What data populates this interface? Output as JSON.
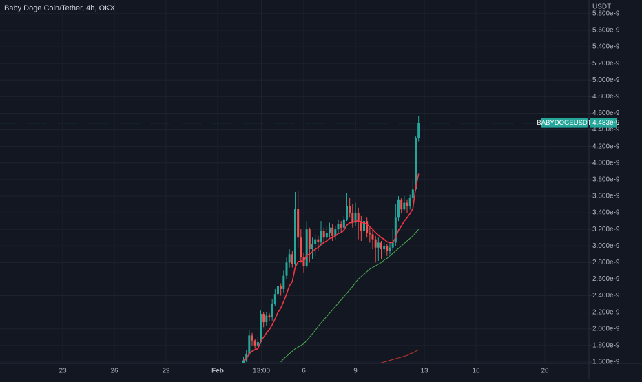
{
  "chart_data": {
    "type": "candlestick",
    "title": "Baby Doge Coin/Tether, 4h, OKX",
    "currency": "USDT",
    "symbol_label": "BABYDOGEUSDT",
    "last_price": {
      "value": 4.483e-09,
      "label": "4.483e-9"
    },
    "up_color": "#26a69a",
    "down_color": "#ef5350",
    "grid": true,
    "xlim": [
      19.36,
      53.56
    ],
    "xticks": [
      23,
      26,
      29,
      {
        "value": 32,
        "label": "Feb"
      },
      {
        "value": 34.541667,
        "label": "13:00"
      },
      {
        "value": 37,
        "label": "6"
      },
      {
        "value": 40,
        "label": "9"
      },
      {
        "value": 44,
        "label": "13"
      },
      {
        "value": 47,
        "label": "16"
      },
      {
        "value": 51,
        "label": "20"
      }
    ],
    "ylim": [
      1.583e-09,
      5.965e-09
    ],
    "yticks": [
      {
        "value": 1.6e-09,
        "label": "1.600e-9"
      },
      {
        "value": 1.8e-09,
        "label": "1.800e-9"
      },
      {
        "value": 2e-09,
        "label": "2.000e-9"
      },
      {
        "value": 2.2e-09,
        "label": "2.200e-9"
      },
      {
        "value": 2.4e-09,
        "label": "2.400e-9"
      },
      {
        "value": 2.6e-09,
        "label": "2.600e-9"
      },
      {
        "value": 2.8e-09,
        "label": "2.800e-9"
      },
      {
        "value": 3e-09,
        "label": "3.000e-9"
      },
      {
        "value": 3.2e-09,
        "label": "3.200e-9"
      },
      {
        "value": 3.4e-09,
        "label": "3.400e-9"
      },
      {
        "value": 3.6e-09,
        "label": "3.600e-9"
      },
      {
        "value": 3.8e-09,
        "label": "3.800e-9"
      },
      {
        "value": 4e-09,
        "label": "4.000e-9"
      },
      {
        "value": 4.2e-09,
        "label": "4.200e-9"
      },
      {
        "value": 4.4e-09,
        "label": "4.400e-9"
      },
      {
        "value": 4.6e-09,
        "label": "4.600e-9"
      },
      {
        "value": 4.8e-09,
        "label": "4.800e-9"
      },
      {
        "value": 5e-09,
        "label": "5.000e-9"
      },
      {
        "value": 5.2e-09,
        "label": "5.200e-9"
      },
      {
        "value": 5.4e-09,
        "label": "5.400e-9"
      },
      {
        "value": 5.6e-09,
        "label": "5.600e-9"
      },
      {
        "value": 5.8e-09,
        "label": "5.800e-9"
      }
    ],
    "candles": {
      "x": [
        33.5,
        33.667,
        33.833,
        34,
        34.167,
        34.333,
        34.5,
        34.667,
        34.833,
        35,
        35.167,
        35.333,
        35.5,
        35.667,
        35.833,
        36,
        36.167,
        36.333,
        36.5,
        36.667,
        36.833,
        37,
        37.167,
        37.333,
        37.5,
        37.667,
        37.833,
        38,
        38.167,
        38.333,
        38.5,
        38.667,
        38.833,
        39,
        39.167,
        39.333,
        39.5,
        39.667,
        39.833,
        40,
        40.167,
        40.333,
        40.5,
        40.667,
        40.833,
        41,
        41.167,
        41.333,
        41.5,
        41.667,
        41.833,
        42,
        42.167,
        42.333,
        42.5,
        42.667,
        42.833,
        43,
        43.167,
        43.333,
        43.5,
        43.667
      ],
      "open": [
        1.58e-09,
        1.62e-09,
        1.7e-09,
        1.92e-09,
        1.86e-09,
        1.8e-09,
        1.84e-09,
        2.18e-09,
        2.08e-09,
        2.16e-09,
        2.14e-09,
        2.3e-09,
        2.42e-09,
        2.52e-09,
        2.48e-09,
        2.64e-09,
        2.8e-09,
        2.9e-09,
        2.78e-09,
        3.45e-09,
        3.1e-09,
        2.86e-09,
        2.76e-09,
        3.2e-09,
        2.96e-09,
        3.02e-09,
        3.08e-09,
        3.05e-09,
        3.18e-09,
        3.1e-09,
        3.16e-09,
        3.22e-09,
        3.12e-09,
        3.2e-09,
        3.26e-09,
        3.22e-09,
        3.32e-09,
        3.48e-09,
        3.4e-09,
        3.28e-09,
        3.4e-09,
        3.3e-09,
        3.18e-09,
        3.3e-09,
        3.16e-09,
        3.14e-09,
        3.08e-09,
        2.98e-09,
        3.04e-09,
        2.96e-09,
        3e-09,
        2.94e-09,
        2.98e-09,
        3.04e-09,
        3.34e-09,
        3.56e-09,
        3.44e-09,
        3.52e-09,
        3.48e-09,
        3.58e-09,
        3.68e-09,
        4.3e-09
      ],
      "high": [
        1.66e-09,
        1.74e-09,
        1.98e-09,
        1.95e-09,
        1.88e-09,
        1.9e-09,
        2.22e-09,
        2.2e-09,
        2.2e-09,
        2.19e-09,
        2.36e-09,
        2.48e-09,
        2.58e-09,
        2.55e-09,
        2.7e-09,
        2.86e-09,
        2.96e-09,
        2.94e-09,
        3.65e-09,
        3.66e-09,
        3.2e-09,
        2.92e-09,
        3.3e-09,
        3.22e-09,
        3.1e-09,
        3.14e-09,
        3.12e-09,
        3.3e-09,
        3.22e-09,
        3.24e-09,
        3.28e-09,
        3.26e-09,
        3.24e-09,
        3.32e-09,
        3.3e-09,
        3.36e-09,
        3.64e-09,
        3.58e-09,
        3.5e-09,
        3.52e-09,
        3.46e-09,
        3.36e-09,
        3.38e-09,
        3.34e-09,
        3.22e-09,
        3.2e-09,
        3.12e-09,
        3.1e-09,
        3.06e-09,
        3.04e-09,
        3.02e-09,
        3.04e-09,
        3.2e-09,
        3.5e-09,
        3.6e-09,
        3.58e-09,
        3.6e-09,
        3.56e-09,
        3.62e-09,
        3.8e-09,
        4.32e-09,
        4.57e-09
      ],
      "low": [
        1.57e-09,
        1.6e-09,
        1.68e-09,
        1.8e-09,
        1.76e-09,
        1.78e-09,
        1.82e-09,
        2.02e-09,
        2.04e-09,
        2.09e-09,
        2.1e-09,
        2.28e-09,
        2.38e-09,
        2.4e-09,
        2.44e-09,
        2.6e-09,
        2.74e-09,
        2.74e-09,
        2.76e-09,
        2.98e-09,
        2.8e-09,
        2.68e-09,
        2.74e-09,
        2.8e-09,
        2.84e-09,
        2.88e-09,
        2.94e-09,
        3e-09,
        3.04e-09,
        3.06e-09,
        3.1e-09,
        3.06e-09,
        3.08e-09,
        3.16e-09,
        3.16e-09,
        3.18e-09,
        3.3e-09,
        3.34e-09,
        3.22e-09,
        3.24e-09,
        3.08e-09,
        3.06e-09,
        3.02e-09,
        3.1e-09,
        3.04e-09,
        2.96e-09,
        2.8e-09,
        2.82e-09,
        2.84e-09,
        2.92e-09,
        2.88e-09,
        2.9e-09,
        2.94e-09,
        3e-09,
        3.3e-09,
        3.4e-09,
        3.42e-09,
        3.4e-09,
        3.44e-09,
        3.54e-09,
        3.66e-09,
        4.26e-09
      ],
      "close": [
        1.62e-09,
        1.7e-09,
        1.92e-09,
        1.86e-09,
        1.8e-09,
        1.84e-09,
        2.18e-09,
        2.08e-09,
        2.16e-09,
        2.14e-09,
        2.3e-09,
        2.42e-09,
        2.52e-09,
        2.48e-09,
        2.64e-09,
        2.8e-09,
        2.9e-09,
        2.78e-09,
        3.45e-09,
        3.1e-09,
        2.86e-09,
        2.76e-09,
        3.2e-09,
        2.96e-09,
        3.02e-09,
        3.08e-09,
        3.05e-09,
        3.18e-09,
        3.1e-09,
        3.16e-09,
        3.22e-09,
        3.12e-09,
        3.2e-09,
        3.26e-09,
        3.22e-09,
        3.32e-09,
        3.48e-09,
        3.4e-09,
        3.28e-09,
        3.4e-09,
        3.3e-09,
        3.18e-09,
        3.3e-09,
        3.16e-09,
        3.14e-09,
        3.08e-09,
        2.98e-09,
        3.04e-09,
        2.96e-09,
        3e-09,
        2.94e-09,
        2.98e-09,
        3.04e-09,
        3.34e-09,
        3.56e-09,
        3.44e-09,
        3.52e-09,
        3.48e-09,
        3.58e-09,
        3.68e-09,
        4.3e-09,
        4.483e-09
      ]
    },
    "series": [
      {
        "color": "#f23645",
        "values": [
          1.62e-09,
          1.64e-09,
          1.7e-09,
          1.73e-09,
          1.75e-09,
          1.76e-09,
          1.85e-09,
          1.9e-09,
          1.95e-09,
          1.99e-09,
          2.05e-09,
          2.12e-09,
          2.2e-09,
          2.25e-09,
          2.33e-09,
          2.42e-09,
          2.52e-09,
          2.57e-09,
          2.74e-09,
          2.81e-09,
          2.82e-09,
          2.81e-09,
          2.89e-09,
          2.9e-09,
          2.93e-09,
          2.96e-09,
          2.98e-09,
          3.02e-09,
          3.04e-09,
          3.06e-09,
          3.09e-09,
          3.1e-09,
          3.12e-09,
          3.15e-09,
          3.16e-09,
          3.19e-09,
          3.25e-09,
          3.28e-09,
          3.28e-09,
          3.3e-09,
          3.3e-09,
          3.28e-09,
          3.28e-09,
          3.26e-09,
          3.23e-09,
          3.2e-09,
          3.16e-09,
          3.13e-09,
          3.1e-09,
          3.08e-09,
          3.05e-09,
          3.04e-09,
          3.04e-09,
          3.1e-09,
          3.19e-09,
          3.24e-09,
          3.3e-09,
          3.34e-09,
          3.39e-09,
          3.45e-09,
          3.7e-09,
          3.87e-09
        ]
      },
      {
        "color": "#4caf50",
        "values": [
          null,
          null,
          null,
          null,
          null,
          null,
          null,
          null,
          null,
          null,
          null,
          null,
          null,
          1.6e-09,
          1.64e-09,
          1.67e-09,
          1.7e-09,
          1.73e-09,
          1.76e-09,
          1.78e-09,
          1.8e-09,
          1.82e-09,
          1.86e-09,
          1.9e-09,
          1.94e-09,
          1.98e-09,
          2.03e-09,
          2.07e-09,
          2.11e-09,
          2.15e-09,
          2.19e-09,
          2.23e-09,
          2.27e-09,
          2.31e-09,
          2.35e-09,
          2.39e-09,
          2.43e-09,
          2.47e-09,
          2.51e-09,
          2.56e-09,
          2.6e-09,
          2.63e-09,
          2.66e-09,
          2.69e-09,
          2.72e-09,
          2.74e-09,
          2.76e-09,
          2.78e-09,
          2.8e-09,
          2.83e-09,
          2.85e-09,
          2.88e-09,
          2.91e-09,
          2.94e-09,
          2.97e-09,
          3e-09,
          3.03e-09,
          3.06e-09,
          3.09e-09,
          3.12e-09,
          3.16e-09,
          3.2e-09
        ]
      },
      {
        "color": "#c0392b",
        "values": [
          null,
          null,
          null,
          null,
          null,
          null,
          null,
          null,
          null,
          null,
          null,
          null,
          null,
          null,
          null,
          null,
          null,
          null,
          null,
          null,
          null,
          null,
          null,
          null,
          null,
          null,
          null,
          null,
          null,
          null,
          null,
          null,
          null,
          null,
          null,
          null,
          null,
          null,
          null,
          null,
          null,
          null,
          null,
          null,
          null,
          null,
          null,
          null,
          1.59e-09,
          1.6e-09,
          1.61e-09,
          1.62e-09,
          1.63e-09,
          1.64e-09,
          1.65e-09,
          1.66e-09,
          1.67e-09,
          1.68e-09,
          1.7e-09,
          1.71e-09,
          1.73e-09,
          1.75e-09
        ]
      }
    ]
  }
}
